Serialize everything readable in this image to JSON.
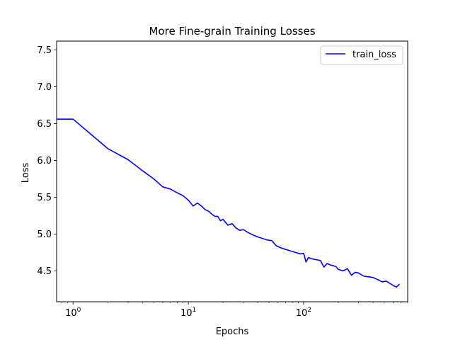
{
  "chart_data": {
    "type": "line",
    "title": "More Fine-grain Training Losses",
    "xlabel": "Epochs",
    "ylabel": "Loss",
    "xscale": "log",
    "xlim": [
      0.72,
      800
    ],
    "ylim": [
      4.08,
      7.62
    ],
    "grid": false,
    "legend_position": "top-right",
    "xticks": [
      {
        "value": 1,
        "label": "10",
        "exp": "0"
      },
      {
        "value": 10,
        "label": "10",
        "exp": "1"
      },
      {
        "value": 100,
        "label": "10",
        "exp": "2"
      }
    ],
    "yticks": [
      {
        "value": 4.5,
        "label": "4.5"
      },
      {
        "value": 5.0,
        "label": "5.0"
      },
      {
        "value": 5.5,
        "label": "5.5"
      },
      {
        "value": 6.0,
        "label": "6.0"
      },
      {
        "value": 6.5,
        "label": "6.5"
      },
      {
        "value": 7.0,
        "label": "7.0"
      },
      {
        "value": 7.5,
        "label": "7.5"
      }
    ],
    "series": [
      {
        "name": "train_loss",
        "color": "#0000ff",
        "x": [
          0.72,
          1,
          2,
          3,
          4,
          5,
          6,
          7,
          8,
          9,
          10,
          11,
          12,
          13,
          14,
          15,
          16,
          17,
          18,
          19,
          20,
          22,
          24,
          26,
          28,
          30,
          33,
          36,
          40,
          44,
          48,
          53,
          58,
          64,
          70,
          77,
          85,
          94,
          100,
          105,
          110,
          120,
          130,
          140,
          150,
          160,
          170,
          180,
          190,
          200,
          220,
          240,
          260,
          280,
          300,
          330,
          360,
          400,
          440,
          480,
          520,
          560,
          600,
          640,
          680
        ],
        "values": [
          6.56,
          6.56,
          6.16,
          6.01,
          5.86,
          5.75,
          5.64,
          5.61,
          5.56,
          5.52,
          5.46,
          5.38,
          5.42,
          5.38,
          5.33,
          5.31,
          5.27,
          5.24,
          5.24,
          5.18,
          5.2,
          5.12,
          5.14,
          5.08,
          5.05,
          5.06,
          5.02,
          4.99,
          4.96,
          4.94,
          4.92,
          4.91,
          4.84,
          4.81,
          4.79,
          4.77,
          4.75,
          4.73,
          4.74,
          4.62,
          4.68,
          4.66,
          4.65,
          4.64,
          4.55,
          4.6,
          4.58,
          4.57,
          4.56,
          4.52,
          4.5,
          4.53,
          4.44,
          4.48,
          4.47,
          4.43,
          4.42,
          4.41,
          4.38,
          4.35,
          4.36,
          4.33,
          4.3,
          4.28,
          4.32
        ]
      }
    ]
  }
}
